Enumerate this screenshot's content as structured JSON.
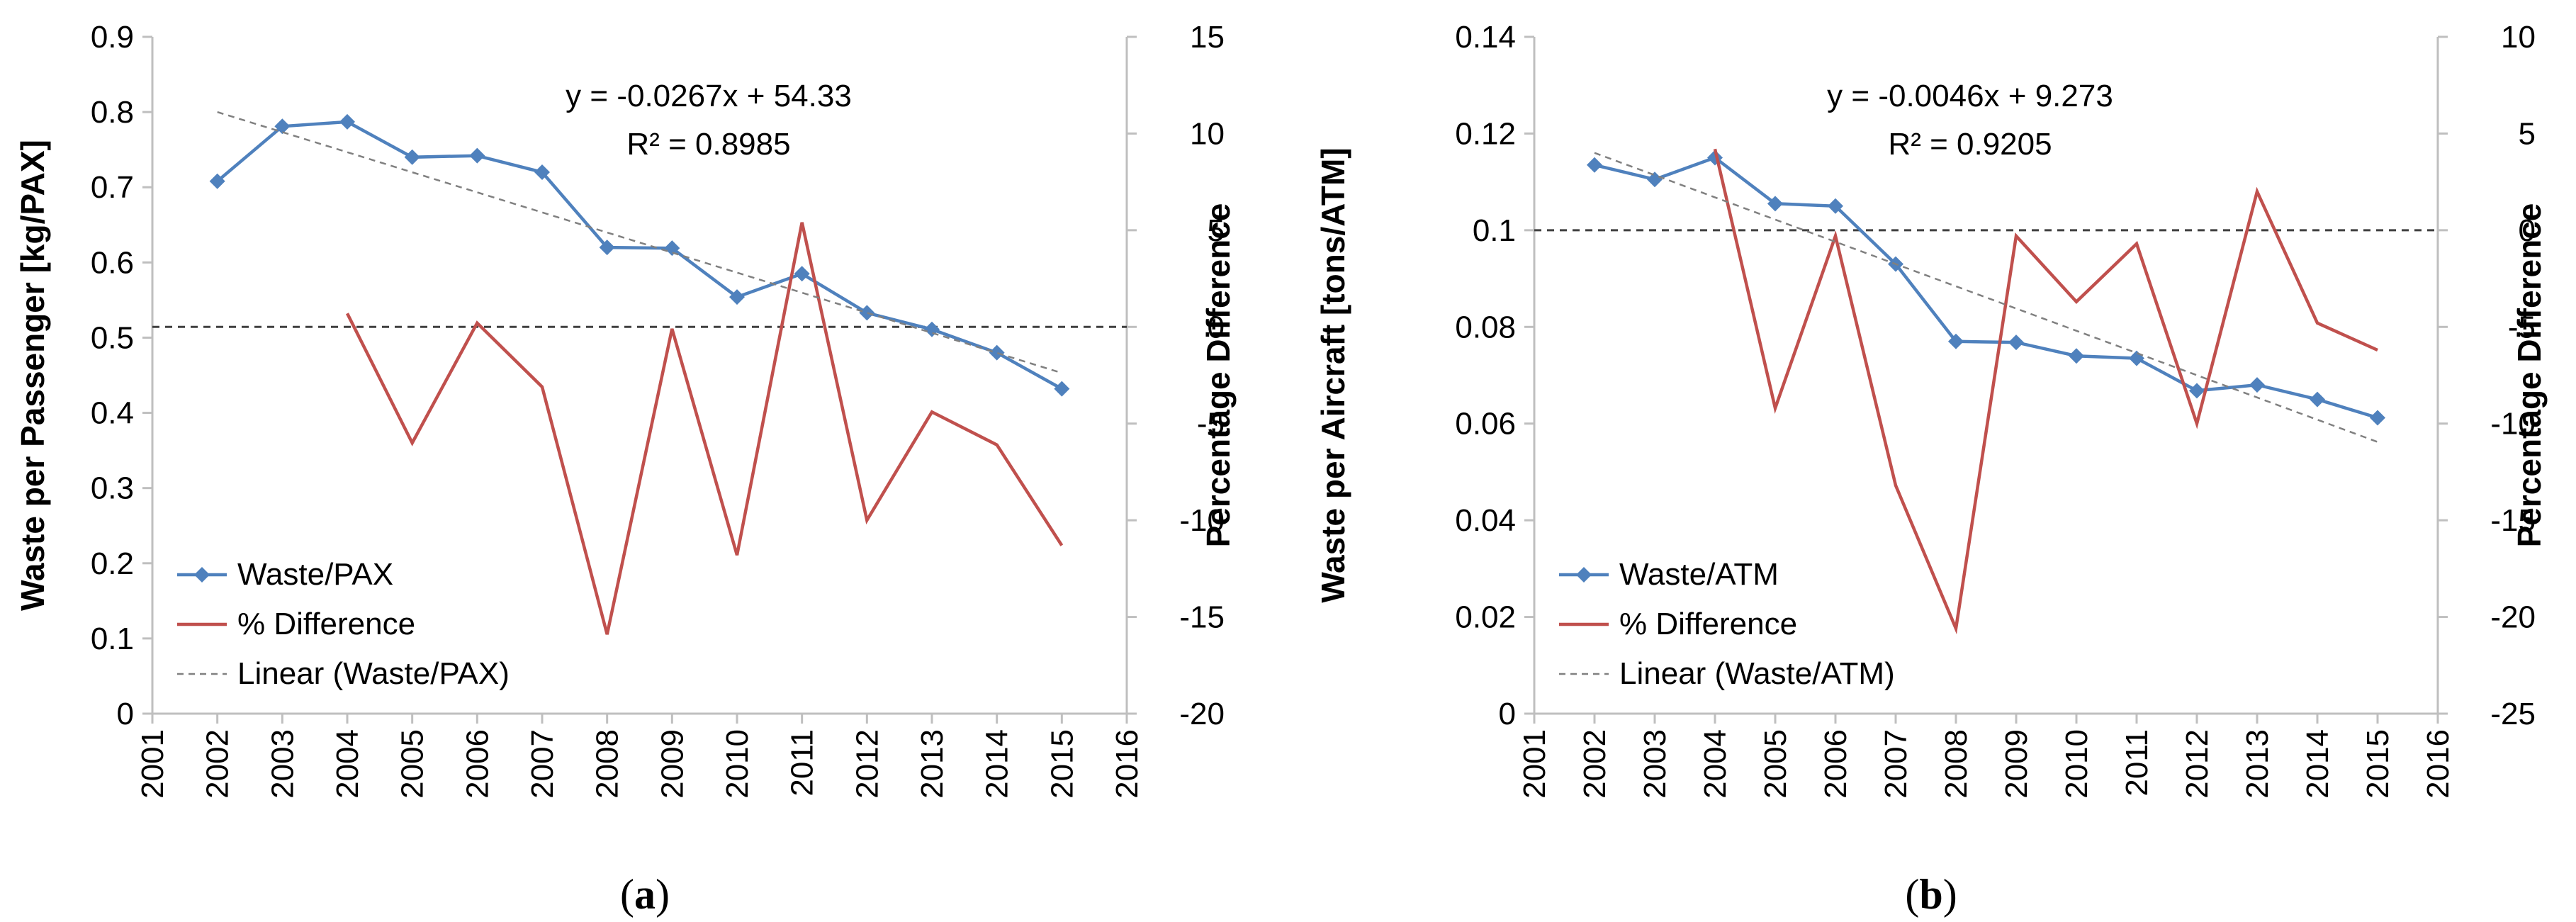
{
  "colors": {
    "waste": "#4f81bd",
    "diff": "#c0504d",
    "trend": "#808080",
    "axis": "#bfbfbf",
    "zero": "#404040"
  },
  "chart_data": [
    {
      "id": "a",
      "type": "line",
      "panel_label": {
        "open": "(",
        "letter": "a",
        "close": ")"
      },
      "ylabel": "Waste per Passenger [kg/PAX]",
      "y2label": "Percentage Difference",
      "xlim": [
        2001,
        2016
      ],
      "xticks": [
        2001,
        2002,
        2003,
        2004,
        2005,
        2006,
        2007,
        2008,
        2009,
        2010,
        2011,
        2012,
        2013,
        2014,
        2015,
        2016
      ],
      "ylim": [
        0,
        0.9
      ],
      "yticks": [
        0,
        0.1,
        0.2,
        0.3,
        0.4,
        0.5,
        0.6,
        0.7,
        0.8,
        0.9
      ],
      "yticklabels": [
        "0",
        "0.1",
        "0.2",
        "0.3",
        "0.4",
        "0.5",
        "0.6",
        "0.7",
        "0.8",
        "0.9"
      ],
      "y2lim": [
        -20,
        15
      ],
      "y2ticks": [
        -20,
        -15,
        -10,
        -5,
        0,
        5,
        10,
        15
      ],
      "y2ticklabels": [
        "-20",
        "-15",
        "-10",
        "-5",
        "0",
        "5",
        "10",
        "15"
      ],
      "equation": "y = -0.0267x + 54.33",
      "r_squared": "R² = 0.8985",
      "legend": [
        "Waste/PAX",
        "% Difference",
        "Linear (Waste/PAX)"
      ],
      "series": [
        {
          "name": "Waste/PAX",
          "axis": "left",
          "x": [
            2002,
            2003,
            2004,
            2005,
            2006,
            2007,
            2008,
            2009,
            2010,
            2011,
            2012,
            2013,
            2014,
            2015
          ],
          "values": [
            0.708,
            0.781,
            0.787,
            0.74,
            0.742,
            0.72,
            0.62,
            0.619,
            0.554,
            0.585,
            0.533,
            0.511,
            0.48,
            0.432
          ]
        },
        {
          "name": "% Difference",
          "axis": "right",
          "x": [
            2004,
            2005,
            2006,
            2007,
            2008,
            2009,
            2010,
            2011,
            2012,
            2013,
            2014,
            2015
          ],
          "values": [
            0.7,
            -6.0,
            0.2,
            -3.1,
            -15.9,
            -0.1,
            -11.8,
            5.4,
            -10.0,
            -4.4,
            -6.1,
            -11.3
          ]
        },
        {
          "name": "Linear (Waste/PAX)",
          "axis": "left",
          "x": [
            2002,
            2015
          ],
          "values": [
            0.8,
            0.453
          ]
        }
      ]
    },
    {
      "id": "b",
      "type": "line",
      "panel_label": {
        "open": "(",
        "letter": "b",
        "close": ")"
      },
      "ylabel": "Waste per Aircraft [tons/ATM]",
      "y2label": "Percentage Difference",
      "xlim": [
        2001,
        2016
      ],
      "xticks": [
        2001,
        2002,
        2003,
        2004,
        2005,
        2006,
        2007,
        2008,
        2009,
        2010,
        2011,
        2012,
        2013,
        2014,
        2015,
        2016
      ],
      "ylim": [
        0,
        0.14
      ],
      "yticks": [
        0,
        0.02,
        0.04,
        0.06,
        0.08,
        0.1,
        0.12,
        0.14
      ],
      "yticklabels": [
        "0",
        "0.02",
        "0.04",
        "0.06",
        "0.08",
        "0.1",
        "0.12",
        "0.14"
      ],
      "y2lim": [
        -25,
        10
      ],
      "y2ticks": [
        -25,
        -20,
        -15,
        -10,
        -5,
        0,
        5,
        10
      ],
      "y2ticklabels": [
        "-25",
        "-20",
        "-15",
        "-10",
        "-5",
        "0",
        "5",
        "10"
      ],
      "equation": "y = -0.0046x + 9.273",
      "r_squared": "R² = 0.9205",
      "legend": [
        "Waste/ATM",
        "% Difference",
        "Linear (Waste/ATM)"
      ],
      "series": [
        {
          "name": "Waste/ATM",
          "axis": "left",
          "x": [
            2002,
            2003,
            2004,
            2005,
            2006,
            2007,
            2008,
            2009,
            2010,
            2011,
            2012,
            2013,
            2014,
            2015
          ],
          "values": [
            0.1135,
            0.1105,
            0.115,
            0.1055,
            0.105,
            0.093,
            0.077,
            0.0768,
            0.074,
            0.0735,
            0.0668,
            0.068,
            0.065,
            0.0612
          ]
        },
        {
          "name": "% Difference",
          "axis": "right",
          "x": [
            2004,
            2005,
            2006,
            2007,
            2008,
            2009,
            2010,
            2011,
            2012,
            2013,
            2014,
            2015
          ],
          "values": [
            4.2,
            -9.2,
            -0.3,
            -13.2,
            -20.6,
            -0.3,
            -3.7,
            -0.7,
            -10.0,
            2.0,
            -4.8,
            -6.2
          ]
        },
        {
          "name": "Linear (Waste/ATM)",
          "axis": "left",
          "x": [
            2002,
            2015
          ],
          "values": [
            0.116,
            0.0562
          ]
        }
      ]
    }
  ]
}
